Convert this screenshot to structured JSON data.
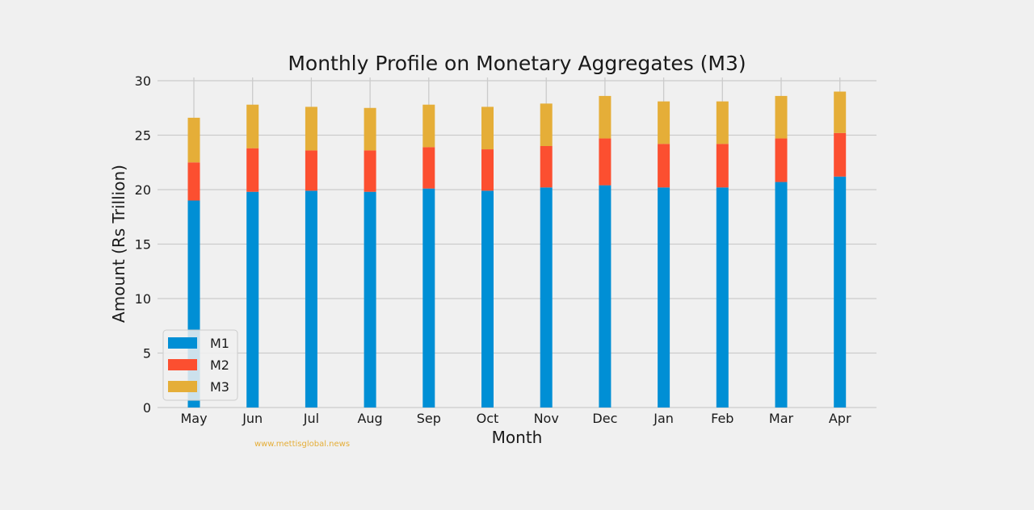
{
  "chart_data": {
    "type": "bar",
    "stacked": true,
    "title": "Monthly Profile on Monetary Aggregates (M3)",
    "xlabel": "Month",
    "ylabel": "Amount (Rs Trillion)",
    "ylim": [
      0,
      30
    ],
    "yticks": [
      0,
      5,
      10,
      15,
      20,
      25,
      30
    ],
    "categories": [
      "May",
      "Jun",
      "Jul",
      "Aug",
      "Sep",
      "Oct",
      "Nov",
      "Dec",
      "Jan",
      "Feb",
      "Mar",
      "Apr"
    ],
    "series": [
      {
        "name": "M1",
        "color": "#008fd5",
        "values": [
          19.0,
          19.8,
          19.9,
          19.8,
          20.1,
          19.9,
          20.2,
          20.4,
          20.2,
          20.2,
          20.7,
          21.2
        ]
      },
      {
        "name": "M2",
        "color": "#fc4f30",
        "values": [
          3.5,
          4.0,
          3.7,
          3.8,
          3.8,
          3.8,
          3.8,
          4.3,
          4.0,
          4.0,
          4.0,
          4.0
        ]
      },
      {
        "name": "M3",
        "color": "#e5ae38",
        "values": [
          4.1,
          4.0,
          4.0,
          3.9,
          3.9,
          3.9,
          3.9,
          3.9,
          3.9,
          3.9,
          3.9,
          3.8
        ]
      }
    ],
    "grid": true,
    "legend_position": "bottom-left"
  },
  "watermark": "www.mettisglobal.news"
}
